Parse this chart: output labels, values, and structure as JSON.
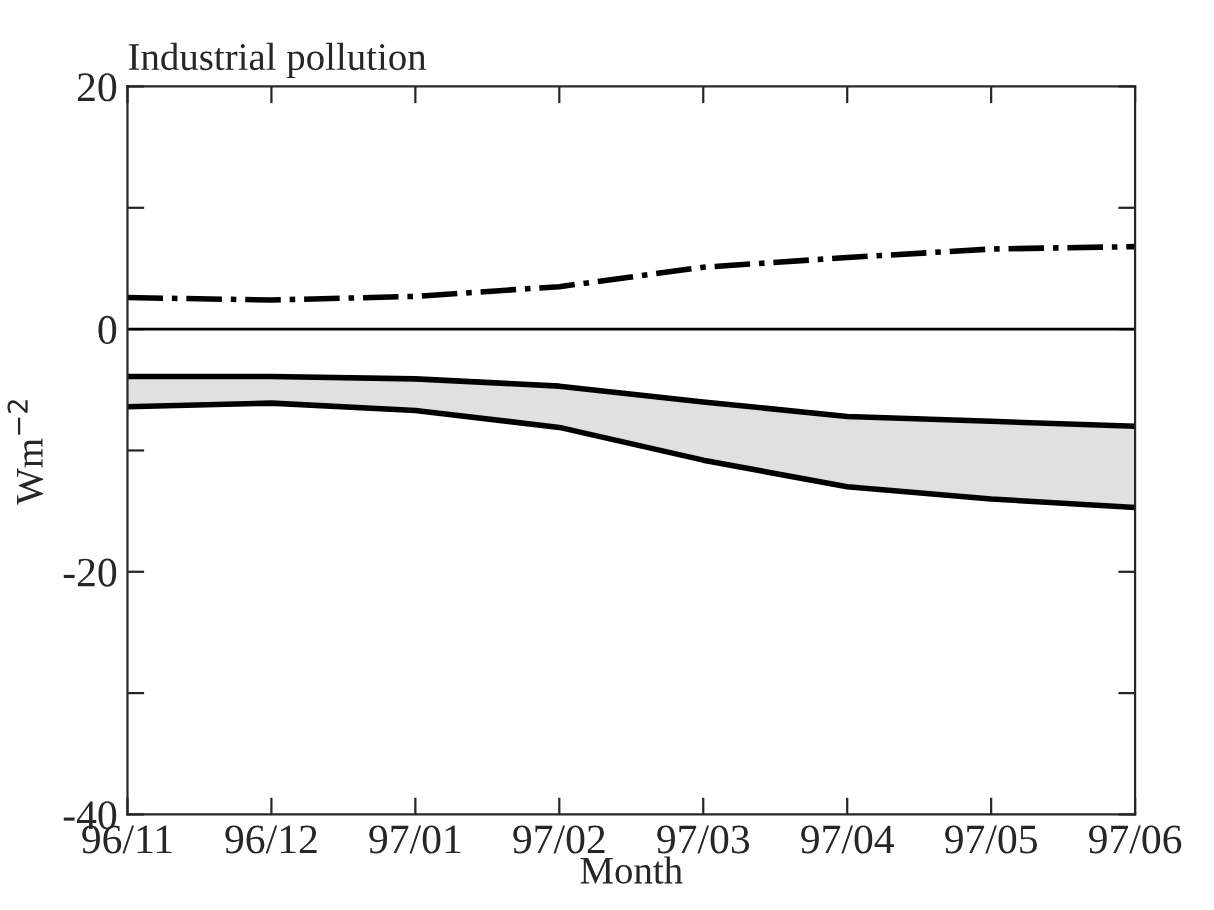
{
  "chart_data": {
    "type": "line",
    "title": "Industrial pollution",
    "xlabel": "Month",
    "ylabel": "Wm$^{−2}$",
    "categories": [
      "96/11",
      "96/12",
      "97/01",
      "97/02",
      "97/03",
      "97/04",
      "97/05",
      "97/06"
    ],
    "series": [
      {
        "color": "#000000",
        "line_style": "dashdot",
        "values": [
          2.6,
          2.4,
          2.7,
          3.5,
          5.1,
          5.9,
          6.6,
          6.8
        ]
      },
      {
        "color": "#000000",
        "line_style": "solid",
        "values": [
          -3.9,
          -3.9,
          -4.1,
          -4.7,
          -6.0,
          -7.2,
          -7.6,
          -8.0
        ],
        "lower": [
          -6.4,
          -6.1,
          -6.7,
          -8.1,
          -10.8,
          -13.0,
          -14.0,
          -14.7
        ],
        "upper": [
          -3.9,
          -3.9,
          -4.1,
          -4.7,
          -6.0,
          -7.2,
          -7.6,
          -8.0
        ]
      },
      {
        "color": "#000000",
        "line_style": "solid",
        "values": [
          -6.4,
          -6.1,
          -6.7,
          -8.1,
          -10.8,
          -13.0,
          -14.0,
          -14.7
        ]
      }
    ],
    "ylim": [
      -40,
      20
    ],
    "yticks": [
      -40,
      {
        "value": -30,
        "label": null
      },
      -20,
      {
        "value": -10,
        "label": null
      },
      0,
      {
        "value": 10,
        "label": null
      },
      20
    ],
    "ref_lines": [
      {
        "axis": "y",
        "value": 0,
        "color": "#000000",
        "line_style": "solid"
      }
    ],
    "grid": false,
    "legend": false
  }
}
